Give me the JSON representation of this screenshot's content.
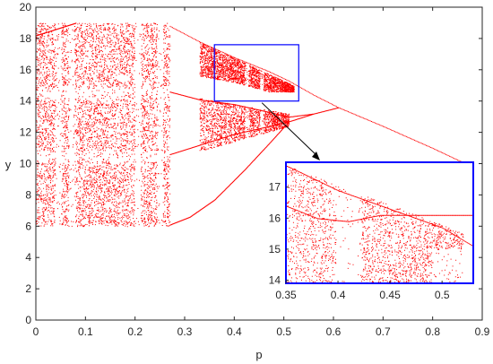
{
  "chart_data": {
    "type": "scatter",
    "xlabel": "p",
    "ylabel": "y",
    "xlim": [
      0,
      0.9
    ],
    "ylim": [
      0,
      20
    ],
    "x_ticks": [
      "0",
      "0.1",
      "0.2",
      "0.3",
      "0.4",
      "0.5",
      "0.6",
      "0.7",
      "0.8",
      "0.9"
    ],
    "y_ticks": [
      "0",
      "2",
      "4",
      "6",
      "8",
      "10",
      "12",
      "14",
      "16",
      "18",
      "20"
    ],
    "grid": false,
    "point_color": "#ff0000",
    "frame_color": "#262626",
    "bifurcation_branches": [
      {
        "x": [
          0.27,
          0.33,
          0.4,
          0.47,
          0.51,
          0.56,
          0.61,
          0.7,
          0.8,
          0.88
        ],
        "y": [
          18.8,
          17.8,
          16.8,
          15.9,
          15.3,
          14.4,
          13.6,
          12.4,
          11.0,
          9.8
        ]
      },
      {
        "x": [
          0.27,
          0.33,
          0.4,
          0.47,
          0.51,
          0.56,
          0.61
        ],
        "y": [
          14.6,
          14.1,
          13.8,
          13.3,
          13.0,
          13.2,
          13.6
        ]
      },
      {
        "x": [
          0.27,
          0.33,
          0.4,
          0.47,
          0.51,
          0.56,
          0.61
        ],
        "y": [
          10.6,
          11.2,
          11.9,
          12.4,
          12.7,
          13.2,
          13.6
        ]
      },
      {
        "x": [
          0.27,
          0.31,
          0.36,
          0.42,
          0.47,
          0.51
        ],
        "y": [
          6.1,
          6.6,
          7.7,
          9.6,
          11.3,
          12.7
        ]
      },
      {
        "x": [
          0.0,
          0.04,
          0.08
        ],
        "y": [
          18.2,
          18.6,
          19.0
        ]
      }
    ],
    "chaotic_bands": [
      {
        "x_range": [
          0.0,
          0.27
        ],
        "y_range": [
          6.0,
          19.0
        ]
      },
      {
        "x_range": [
          0.36,
          0.52
        ],
        "y_range": [
          10.0,
          17.6
        ]
      }
    ],
    "periodic_windows": [
      0.045,
      0.072,
      0.205,
      0.25,
      0.425,
      0.455
    ],
    "zoom_box": {
      "x_range": [
        0.36,
        0.53
      ],
      "y_range": [
        14.0,
        17.6
      ],
      "color": "#0000ff"
    },
    "inset": {
      "xlim": [
        0.35,
        0.53
      ],
      "ylim": [
        13.9,
        17.8
      ],
      "x_ticks": [
        "0.35",
        "0.4",
        "0.45",
        "0.5"
      ],
      "y_ticks": [
        "14",
        "15",
        "16",
        "17"
      ],
      "frame_color": "#0000ff"
    }
  }
}
